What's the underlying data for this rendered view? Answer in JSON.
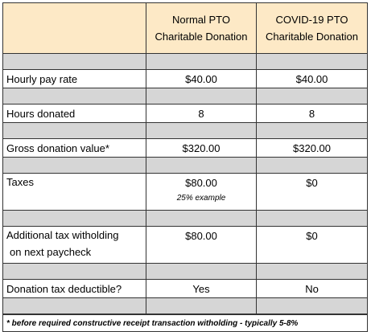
{
  "headers": {
    "col2_line1": "Normal PTO",
    "col2_line2": "Charitable Donation",
    "col3_line1": "COVID-19 PTO",
    "col3_line2": "Charitable Donation"
  },
  "rows": [
    {
      "label": "Hourly pay rate",
      "normal": "$40.00",
      "covid": "$40.00"
    },
    {
      "label": "Hours donated",
      "normal": "8",
      "covid": "8"
    },
    {
      "label": "Gross donation value*",
      "normal": "$320.00",
      "covid": "$320.00"
    },
    {
      "label": "Taxes",
      "normal": "$80.00",
      "normal_note": "25% example",
      "covid": "$0"
    },
    {
      "label_line1": "Additional tax witholding",
      "label_line2": "on next paycheck",
      "normal": "$80.00",
      "covid": "$0"
    },
    {
      "label": "Donation tax deductible?",
      "normal": "Yes",
      "covid": "No"
    }
  ],
  "footnote": "* before required constructive receipt transaction witholding - typically 5-8%",
  "colors": {
    "header_bg": "#fde9c6",
    "spacer_bg": "#d6d6d6"
  }
}
